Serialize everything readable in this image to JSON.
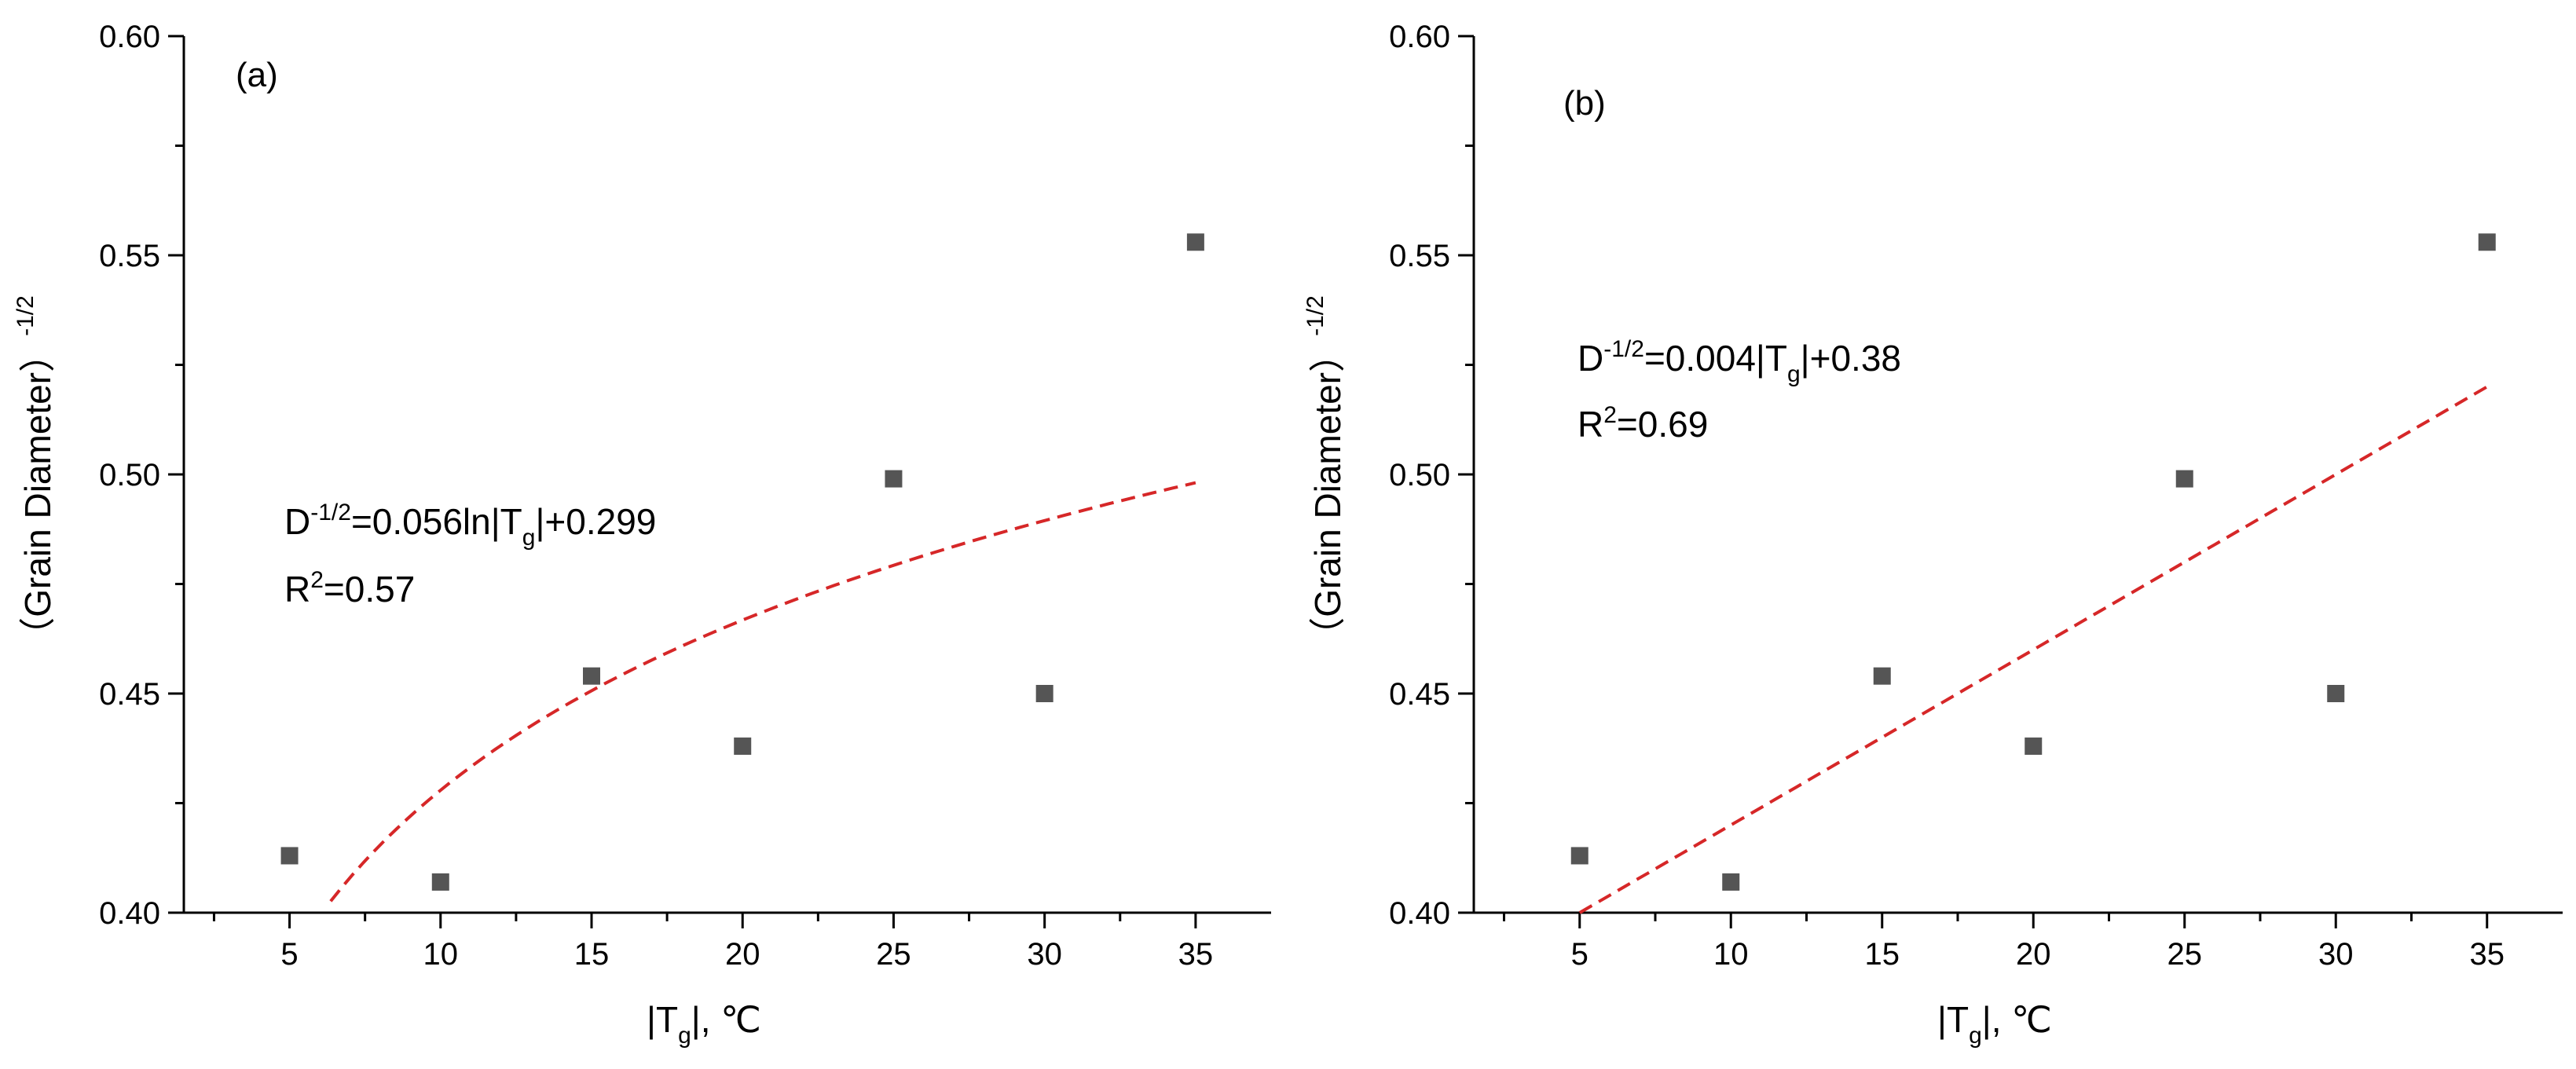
{
  "chart_data": [
    {
      "type": "scatter",
      "panel_label": "(a)",
      "x": [
        5,
        10,
        15,
        20,
        25,
        30,
        35
      ],
      "y": [
        0.413,
        0.407,
        0.454,
        0.438,
        0.499,
        0.45,
        0.553
      ],
      "xlim": [
        1.5,
        37.5
      ],
      "ylim": [
        0.4,
        0.6
      ],
      "xticks": [
        "5",
        "10",
        "15",
        "20",
        "25",
        "30",
        "35"
      ],
      "yticks": [
        "0.40",
        "0.45",
        "0.50",
        "0.55",
        "0.60"
      ],
      "xlabel": {
        "pre": "|T",
        "sub": "g",
        "post": "|, ℃"
      },
      "ylabel": {
        "text": "（Grain Diameter）",
        "sup": "-1/2"
      },
      "fit": {
        "kind": "log",
        "a": 0.056,
        "b": 0.299,
        "x_range": [
          6,
          35
        ],
        "color": "#d62728",
        "dash": "dashed"
      },
      "equation": {
        "line1_pre": "D",
        "line1_sup": "-1/2",
        "line1_mid": "=0.056ln|T",
        "line1_sub": "g",
        "line1_post": "|+0.299",
        "line2_pre": "R",
        "line2_sup": "2",
        "line2_post": "=0.57"
      },
      "marker_color": "#555555"
    },
    {
      "type": "scatter",
      "panel_label": "(b)",
      "x": [
        5,
        10,
        15,
        20,
        25,
        30,
        35
      ],
      "y": [
        0.413,
        0.407,
        0.454,
        0.438,
        0.499,
        0.45,
        0.553
      ],
      "xlim": [
        1.5,
        37.5
      ],
      "ylim": [
        0.4,
        0.6
      ],
      "xticks": [
        "5",
        "10",
        "15",
        "20",
        "25",
        "30",
        "35"
      ],
      "yticks": [
        "0.40",
        "0.45",
        "0.50",
        "0.55",
        "0.60"
      ],
      "xlabel": {
        "pre": "|T",
        "sub": "g",
        "post": "|, ℃"
      },
      "ylabel": {
        "text": "（Grain Diameter）",
        "sup": "-1/2"
      },
      "fit": {
        "kind": "linear",
        "a": 0.004,
        "b": 0.38,
        "x_range": [
          5,
          35
        ],
        "color": "#d62728",
        "dash": "dashed"
      },
      "equation": {
        "line1_pre": "D",
        "line1_sup": "-1/2",
        "line1_mid": "=0.004|T",
        "line1_sub": "g",
        "line1_post": "|+0.38",
        "line2_pre": "R",
        "line2_sup": "2",
        "line2_post": "=0.69"
      },
      "marker_color": "#555555"
    }
  ]
}
